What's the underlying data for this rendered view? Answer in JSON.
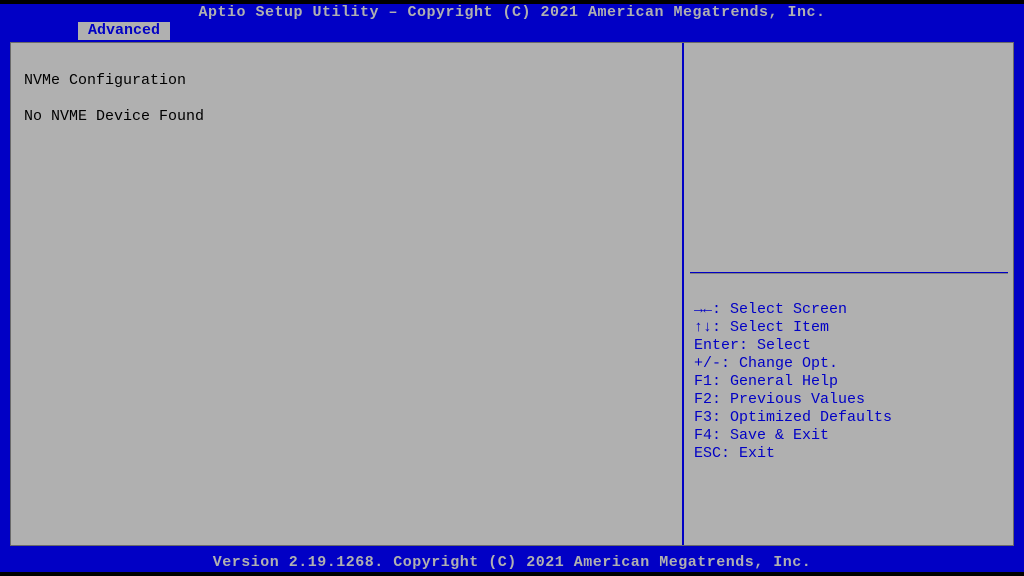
{
  "colors": {
    "background_outer": "#000000",
    "blue": "#0100c5",
    "panel_gray": "#b0b0b0",
    "text_light": "#b0b0b0",
    "text_dark": "#000000"
  },
  "header": {
    "title": "Aptio Setup Utility – Copyright (C) 2021 American Megatrends, Inc.",
    "active_tab": "Advanced"
  },
  "main": {
    "heading": "NVMe Configuration",
    "status": "No NVME Device Found"
  },
  "help": {
    "l1": "→←: Select Screen",
    "l2": "↑↓: Select Item",
    "l3": "Enter: Select",
    "l4": "+/-: Change Opt.",
    "l5": "F1: General Help",
    "l6": "F2: Previous Values",
    "l7": "F3: Optimized Defaults",
    "l8": "F4: Save & Exit",
    "l9": "ESC: Exit"
  },
  "footer": {
    "version": "Version 2.19.1268. Copyright (C) 2021 American Megatrends, Inc."
  }
}
